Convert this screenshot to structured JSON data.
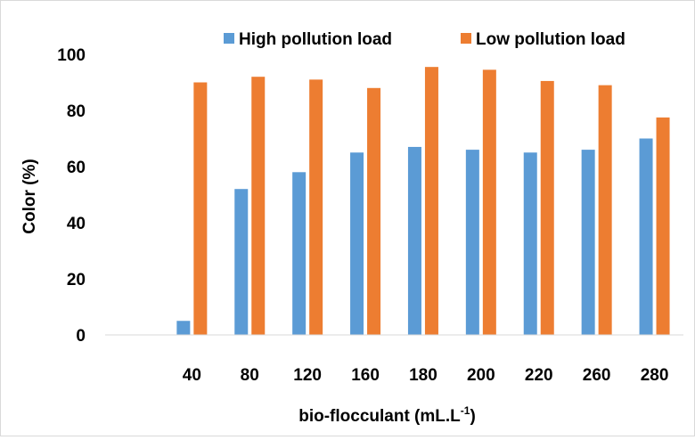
{
  "chart_data": {
    "type": "bar",
    "title": "",
    "xlabel": "bio-flocculant (mL.L",
    "xlabel_superscript": "-1",
    "xlabel_suffix": ")",
    "ylabel": "Color (%)",
    "ylim": [
      0,
      100
    ],
    "yticks": [
      0,
      20,
      40,
      60,
      80,
      100
    ],
    "grid": false,
    "legend_position": "top",
    "categories": [
      "",
      "40",
      "80",
      "120",
      "160",
      "180",
      "200",
      "220",
      "260",
      "280"
    ],
    "series": [
      {
        "name": "High pollution load",
        "color": "#5b9bd5",
        "values": [
          null,
          5,
          52,
          58,
          65,
          67,
          66,
          65,
          66,
          70
        ]
      },
      {
        "name": "Low pollution load",
        "color": "#ed7d31",
        "values": [
          null,
          90,
          92,
          91,
          88,
          95.5,
          94.5,
          90.5,
          89,
          77.5
        ]
      }
    ]
  }
}
